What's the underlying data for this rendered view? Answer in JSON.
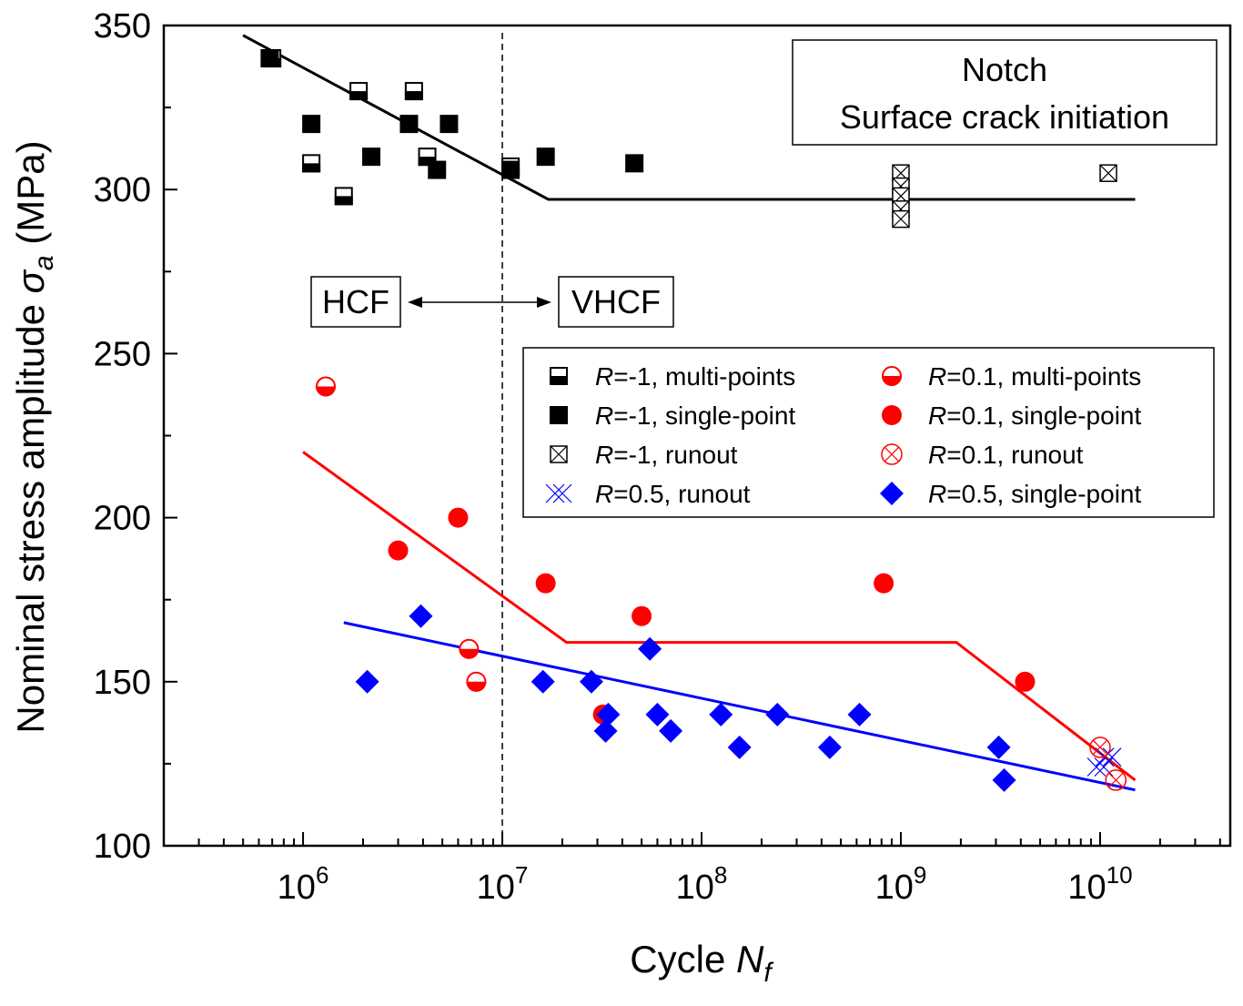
{
  "chart_data": {
    "type": "scatter",
    "title": "",
    "xlabel": {
      "main": "Cycle ",
      "var": "N",
      "sub": "f"
    },
    "ylabel": {
      "main": "Nominal stress amplitude ",
      "var": "σ",
      "sub": "a",
      "unit": " (MPa)"
    },
    "xscale": "log",
    "xlim": [
      200000,
      45000000000
    ],
    "ylim": [
      100,
      350
    ],
    "x_ticks": [
      {
        "value": 1000000,
        "base": "10",
        "exp": "6"
      },
      {
        "value": 10000000,
        "base": "10",
        "exp": "7"
      },
      {
        "value": 100000000,
        "base": "10",
        "exp": "8"
      },
      {
        "value": 1000000000,
        "base": "10",
        "exp": "9"
      },
      {
        "value": 10000000000,
        "base": "10",
        "exp": "10"
      }
    ],
    "y_ticks": [
      {
        "value": 100,
        "label": "100"
      },
      {
        "value": 150,
        "label": "150"
      },
      {
        "value": 200,
        "label": "200"
      },
      {
        "value": 250,
        "label": "250"
      },
      {
        "value": 300,
        "label": "300"
      },
      {
        "value": 350,
        "label": "350"
      }
    ],
    "annotations": {
      "title_box": [
        "Notch",
        "Surface crack initiation"
      ],
      "hcf": "HCF",
      "vhcf": "VHCF",
      "boundary_x": 10000000
    },
    "colors": {
      "black": "#000000",
      "red": "#ff0000",
      "blue": "#0000ff"
    },
    "series": [
      {
        "name": "R=-1, multi-points",
        "legend": {
          "var": "R",
          "rest": "=-1, multi-points"
        },
        "marker": "square-half",
        "color": "#000000",
        "points": [
          [
            700000,
            340
          ],
          [
            1100000,
            308
          ],
          [
            1600000,
            298
          ],
          [
            1900000,
            330
          ],
          [
            3600000,
            330
          ],
          [
            4200000,
            310
          ],
          [
            11000000,
            307
          ]
        ]
      },
      {
        "name": "R=-1, single-point",
        "legend": {
          "var": "R",
          "rest": "=-1, single-point"
        },
        "marker": "square",
        "color": "#000000",
        "points": [
          [
            680000,
            340
          ],
          [
            1100000,
            320
          ],
          [
            2200000,
            310
          ],
          [
            3400000,
            320
          ],
          [
            4700000,
            306
          ],
          [
            5400000,
            320
          ],
          [
            11000000,
            306
          ],
          [
            16500000,
            310
          ],
          [
            46000000,
            308
          ]
        ]
      },
      {
        "name": "R=-1, runout",
        "legend": {
          "var": "R",
          "rest": "=-1, runout"
        },
        "marker": "square-x",
        "color": "#000000",
        "points": [
          [
            1000000000,
            305
          ],
          [
            1000000000,
            301
          ],
          [
            1000000000,
            298
          ],
          [
            1000000000,
            294
          ],
          [
            1000000000,
            291
          ],
          [
            11000000000,
            305
          ]
        ]
      },
      {
        "name": "R=0.5, runout",
        "legend": {
          "var": "R",
          "rest": "=0.5, runout"
        },
        "marker": "double-x",
        "color": "#0000ff",
        "points": [
          [
            10000000000,
            124
          ],
          [
            11000000000,
            127
          ]
        ]
      },
      {
        "name": "R=0.1, multi-points",
        "legend": {
          "var": "R",
          "rest": "=0.1, multi-points"
        },
        "marker": "circle-half",
        "color": "#ff0000",
        "points": [
          [
            1300000,
            240
          ],
          [
            6800000,
            160
          ],
          [
            7400000,
            150
          ]
        ]
      },
      {
        "name": "R=0.1, single-point",
        "legend": {
          "var": "R",
          "rest": "=0.1, single-point"
        },
        "marker": "circle",
        "color": "#ff0000",
        "points": [
          [
            3000000,
            190
          ],
          [
            6000000,
            200
          ],
          [
            16500000,
            180
          ],
          [
            32000000,
            140
          ],
          [
            50000000,
            170
          ],
          [
            820000000,
            180
          ],
          [
            4200000000,
            150
          ]
        ]
      },
      {
        "name": "R=0.1, runout",
        "legend": {
          "var": "R",
          "rest": "=0.1, runout"
        },
        "marker": "circle-x",
        "color": "#ff0000",
        "points": [
          [
            10000000000,
            130
          ],
          [
            12000000000,
            120
          ]
        ]
      },
      {
        "name": "R=0.5, single-point",
        "legend": {
          "var": "R",
          "rest": "=0.5, single-point"
        },
        "marker": "diamond",
        "color": "#0000ff",
        "points": [
          [
            2100000,
            150
          ],
          [
            3900000,
            170
          ],
          [
            16000000,
            150
          ],
          [
            28000000,
            150
          ],
          [
            33000000,
            135
          ],
          [
            34000000,
            140
          ],
          [
            55000000,
            160
          ],
          [
            60000000,
            140
          ],
          [
            70000000,
            135
          ],
          [
            125000000,
            140
          ],
          [
            155000000,
            130
          ],
          [
            240000000,
            140
          ],
          [
            440000000,
            130
          ],
          [
            620000000,
            140
          ],
          [
            3100000000,
            130
          ],
          [
            3300000000,
            120
          ]
        ]
      }
    ],
    "fit_lines": [
      {
        "name": "R=-1 fit",
        "color": "#000000",
        "points": [
          [
            500000,
            347
          ],
          [
            17000000,
            297
          ],
          [
            15000000000,
            297
          ]
        ]
      },
      {
        "name": "R=0.1 fit",
        "color": "#ff0000",
        "points": [
          [
            1000000,
            220
          ],
          [
            21000000,
            162
          ],
          [
            1900000000,
            162
          ],
          [
            15000000000,
            120
          ]
        ]
      },
      {
        "name": "R=0.5 fit",
        "color": "#0000ff",
        "points": [
          [
            1600000,
            168
          ],
          [
            15000000000,
            117
          ]
        ]
      }
    ],
    "legend_order": [
      0,
      4,
      1,
      5,
      2,
      6,
      3,
      7
    ],
    "legend_position": "center-right"
  }
}
